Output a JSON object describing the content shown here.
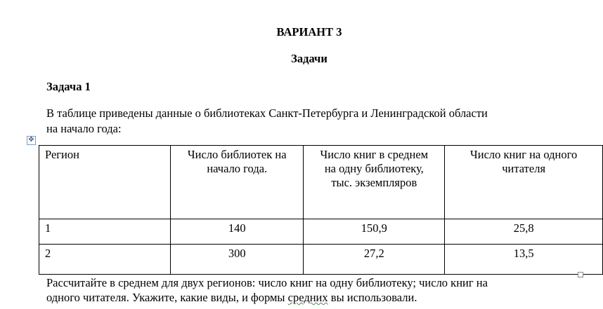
{
  "heading": "ВАРИАНТ 3",
  "subheading": "Задачи",
  "task_title": "Задача 1",
  "intro_line1": "В таблице приведены данные о библиотеках Санкт-Петербурга и Ленинградской области",
  "intro_line2": "на начало года:",
  "table": {
    "headers": [
      "Регион",
      "Число библиотек на начало года.",
      "Число книг в среднем на одну библиотеку, тыс. экземпляров",
      "Число книг на одного читателя"
    ],
    "rows": [
      [
        "1",
        "140",
        "150,9",
        "25,8"
      ],
      [
        "2",
        "300",
        "27,2",
        "13,5"
      ]
    ]
  },
  "question_line1": "Рассчитайте в среднем для двух регионов: число книг на одну библиотеку; число книг на",
  "question_line2a": "одного читателя. Укажите, какие виды, и формы ",
  "question_line2b": "средних",
  "question_line2c": " вы использовали."
}
